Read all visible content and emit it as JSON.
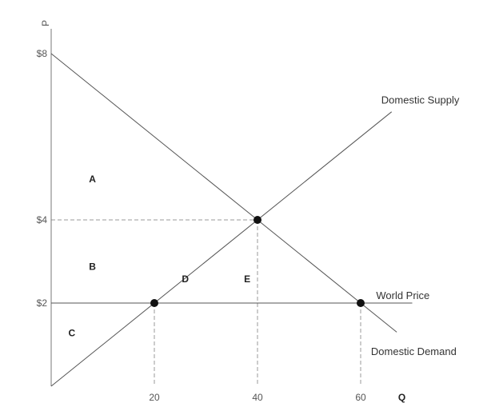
{
  "chart_data": {
    "type": "line",
    "title": "",
    "xlabel": "Q",
    "ylabel": "P",
    "xlim": [
      0,
      68
    ],
    "ylim": [
      0,
      8
    ],
    "x_ticks": [
      {
        "value": 20,
        "label": "20"
      },
      {
        "value": 40,
        "label": "40"
      },
      {
        "value": 60,
        "label": "60"
      }
    ],
    "y_ticks": [
      {
        "value": 8,
        "label": "$8"
      },
      {
        "value": 4,
        "label": "$4"
      },
      {
        "value": 2,
        "label": "$2"
      }
    ],
    "grid": false,
    "series": [
      {
        "name": "Domestic Supply",
        "x": [
          0,
          66
        ],
        "y": [
          0,
          6.6
        ],
        "color": "#555555"
      },
      {
        "name": "Domestic Demand",
        "x": [
          0,
          67
        ],
        "y": [
          8,
          1.3
        ],
        "color": "#555555"
      },
      {
        "name": "World Price",
        "x": [
          0,
          70
        ],
        "y": [
          2,
          2
        ],
        "color": "#555555"
      }
    ],
    "points": [
      {
        "x": 40,
        "y": 4
      },
      {
        "x": 20,
        "y": 2
      },
      {
        "x": 60,
        "y": 2
      }
    ],
    "regions": [
      {
        "label": "A",
        "x": 8,
        "y": 4.9
      },
      {
        "label": "B",
        "x": 8,
        "y": 2.8
      },
      {
        "label": "C",
        "x": 4,
        "y": 1.2
      },
      {
        "label": "D",
        "x": 26,
        "y": 2.5
      },
      {
        "label": "E",
        "x": 38,
        "y": 2.5
      }
    ],
    "line_labels": [
      {
        "text": "Domestic Supply",
        "x": 64,
        "y": 6.8
      },
      {
        "text": "World Price",
        "x": 63,
        "y": 2.1
      },
      {
        "text": "Domestic Demand",
        "x": 62,
        "y": 0.75
      }
    ]
  }
}
